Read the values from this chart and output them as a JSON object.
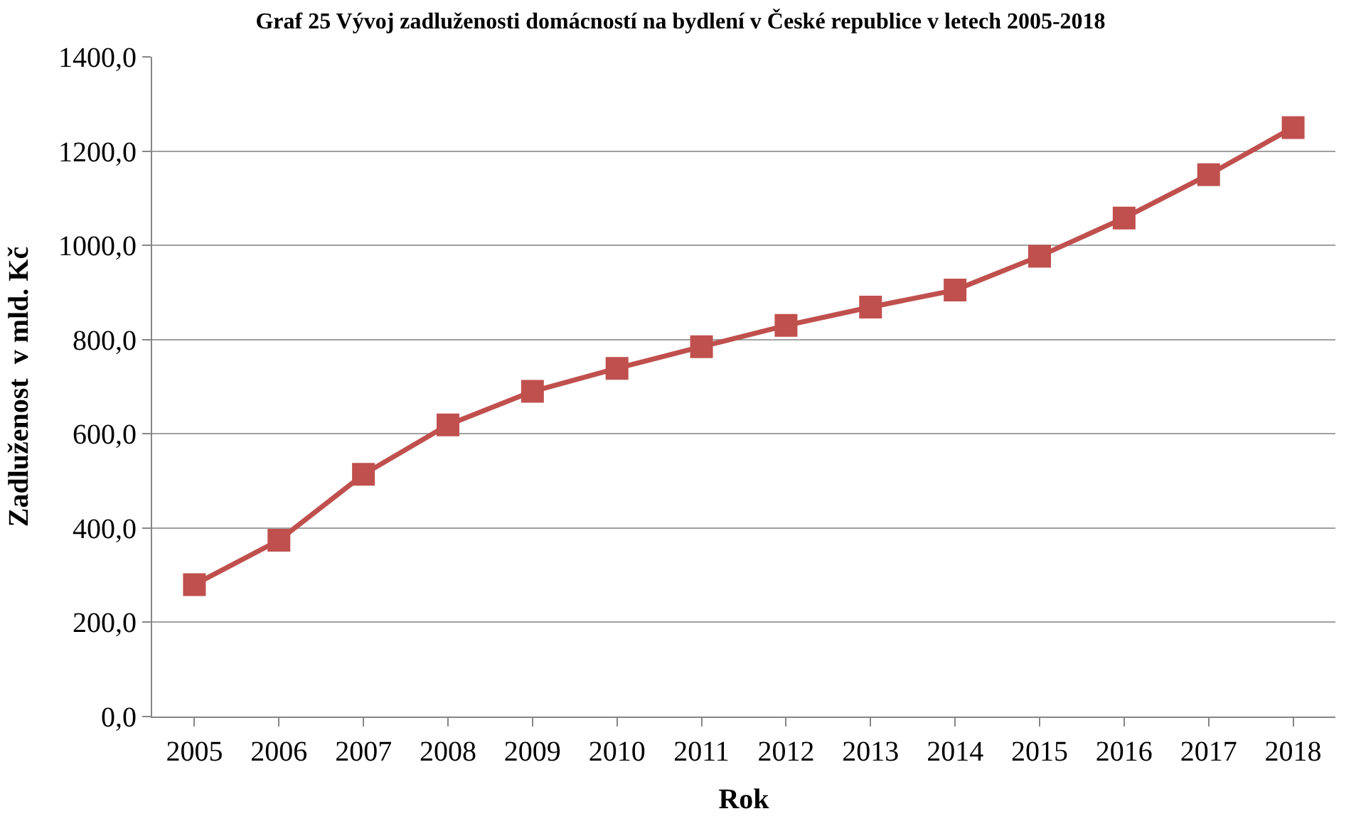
{
  "chart_data": {
    "type": "line",
    "title": "Graf 25 Vývoj zadluženosti domácností na bydlení v České republice v letech 2005-2018",
    "xlabel": "Rok",
    "ylabel": "Zadluženost  v mld. Kč",
    "categories": [
      "2005",
      "2006",
      "2007",
      "2008",
      "2009",
      "2010",
      "2011",
      "2012",
      "2013",
      "2014",
      "2015",
      "2016",
      "2017",
      "2018"
    ],
    "series": [
      {
        "color": "#c0504d",
        "values": [
          280,
          374,
          514,
          619,
          690,
          739,
          785,
          830,
          869,
          905,
          977,
          1058,
          1150,
          1250
        ]
      }
    ],
    "ylim": [
      0,
      1400
    ],
    "yticks": [
      {
        "value": 0,
        "label": "0,0"
      },
      {
        "value": 200,
        "label": "200,0"
      },
      {
        "value": 400,
        "label": "400,0"
      },
      {
        "value": 600,
        "label": "600,0"
      },
      {
        "value": 800,
        "label": "800,0"
      },
      {
        "value": 1000,
        "label": "1000,0"
      },
      {
        "value": 1200,
        "label": "1200,0"
      },
      {
        "value": 1400,
        "label": "1400,0"
      }
    ],
    "grid": "y",
    "marker": "square",
    "line_style": "solid"
  }
}
